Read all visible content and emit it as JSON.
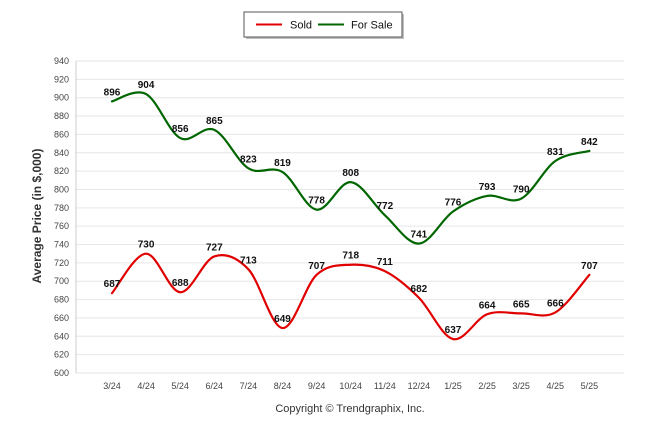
{
  "chart_data": {
    "type": "line",
    "title": "",
    "xlabel": "",
    "ylabel": "Average Price (in $,000)",
    "categories": [
      "3/24",
      "4/24",
      "5/24",
      "6/24",
      "7/24",
      "8/24",
      "9/24",
      "10/24",
      "11/24",
      "12/24",
      "1/25",
      "2/25",
      "3/25",
      "4/25",
      "5/25"
    ],
    "series": [
      {
        "name": "Sold",
        "color": "#e00000",
        "values": [
          687,
          730,
          688,
          727,
          713,
          649,
          707,
          718,
          711,
          682,
          637,
          664,
          665,
          666,
          707
        ]
      },
      {
        "name": "For Sale",
        "color": "#006600",
        "values": [
          896,
          904,
          856,
          865,
          823,
          819,
          778,
          808,
          772,
          741,
          776,
          793,
          790,
          831,
          842
        ]
      }
    ],
    "ylim": [
      600,
      940
    ],
    "ytick_step": 20,
    "grid": true,
    "legend": "top-center",
    "footer": "Copyright © Trendgraphix, Inc."
  }
}
